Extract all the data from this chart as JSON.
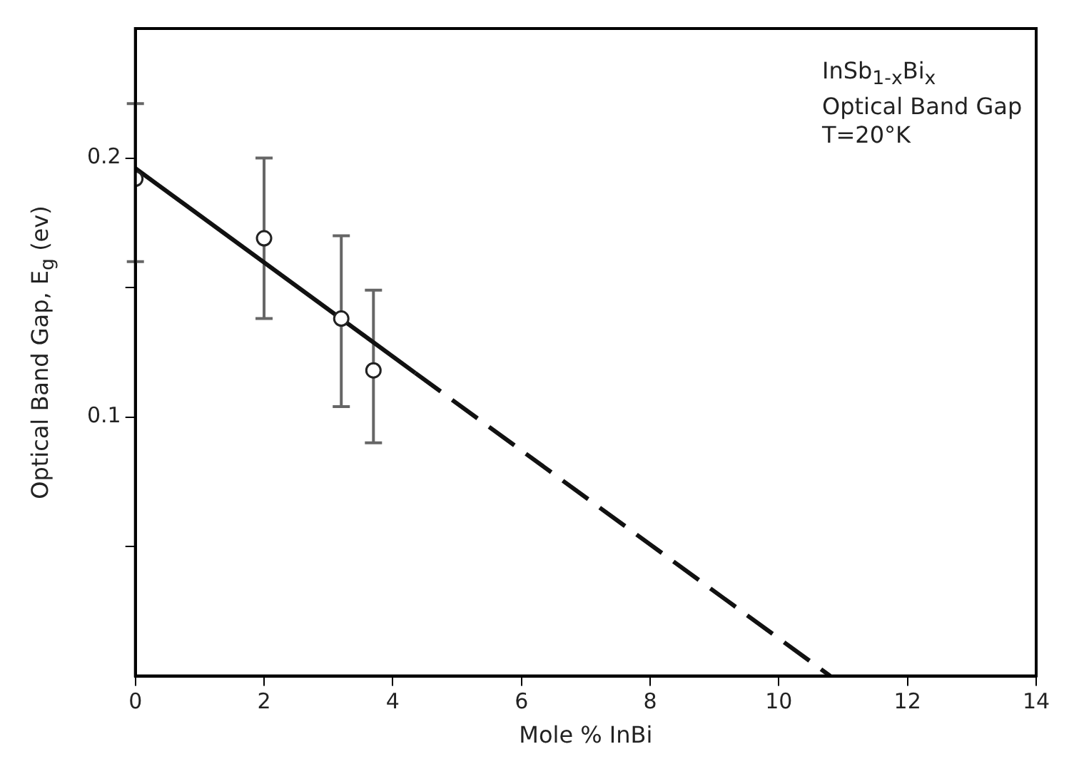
{
  "chart_data": {
    "type": "scatter",
    "xlabel": "Mole % InBi",
    "ylabel": "Optical Band Gap, E$_{g}$ (ev)",
    "annotations": [
      "InSb$_{1-x}$Bi$_{x}$\nOptical Band Gap\nT=20°K"
    ],
    "xlim": [
      0,
      14
    ],
    "xticks": [
      0,
      2,
      4,
      6,
      8,
      10,
      12,
      14
    ],
    "ylim": [
      0,
      0.25
    ],
    "yticks": [
      {
        "value": 0.05,
        "label": null
      },
      0.1,
      {
        "value": 0.15,
        "label": null
      },
      0.2
    ],
    "tick_labels": "xy",
    "grid": false,
    "legend": false,
    "series": [
      {
        "type": "scatter",
        "color": "#222222",
        "marker": "circle",
        "x": [
          0,
          2,
          3.2,
          3.7
        ],
        "values": [
          0.192,
          0.169,
          0.138,
          0.118
        ],
        "errors": [
          [
            0.16,
            0.221
          ],
          [
            0.138,
            0.2
          ],
          [
            0.104,
            0.17
          ],
          [
            0.09,
            0.149
          ]
        ]
      },
      {
        "type": "line",
        "color": "#111111",
        "marker": "none",
        "line_style": "solid",
        "x": [
          0,
          4.35
        ],
        "values": [
          0.196,
          0.117
        ]
      },
      {
        "type": "line",
        "color": "#111111",
        "marker": "none",
        "line_style": "dashed",
        "x": [
          4.35,
          10.8
        ],
        "values": [
          0.117,
          0
        ]
      }
    ]
  }
}
